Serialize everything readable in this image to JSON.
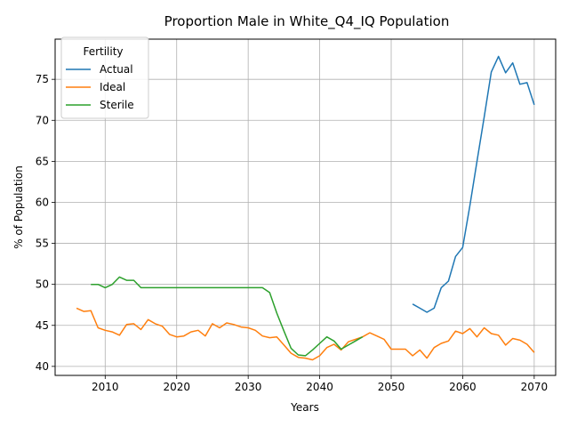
{
  "chart_data": {
    "type": "line",
    "title": "Proportion Male in White_Q4_IQ Population",
    "xlabel": "Years",
    "ylabel": "% of Population",
    "xlim": [
      2003,
      2073
    ],
    "ylim": [
      38.9,
      79.9
    ],
    "xticks": [
      2010,
      2020,
      2030,
      2040,
      2050,
      2060,
      2070
    ],
    "yticks": [
      40,
      45,
      50,
      55,
      60,
      65,
      70,
      75
    ],
    "grid": true,
    "legend": {
      "title": "Fertility",
      "placement": "top-left"
    },
    "series": [
      {
        "name": "Actual",
        "color": "#1f77b4",
        "x": [
          2053,
          2054,
          2055,
          2056,
          2057,
          2058,
          2059,
          2060,
          2061,
          2062,
          2063,
          2064,
          2065,
          2066,
          2067,
          2068,
          2069,
          2070
        ],
        "y": [
          47.6,
          47.1,
          46.6,
          47.1,
          49.6,
          50.4,
          53.4,
          54.5,
          59.6,
          65.0,
          70.4,
          75.9,
          77.8,
          75.8,
          77.0,
          74.4,
          74.6,
          71.9
        ]
      },
      {
        "name": "Ideal",
        "color": "#ff7f0e",
        "x": [
          2006,
          2007,
          2008,
          2009,
          2010,
          2011,
          2012,
          2013,
          2014,
          2015,
          2016,
          2017,
          2018,
          2019,
          2020,
          2021,
          2022,
          2023,
          2024,
          2025,
          2026,
          2027,
          2028,
          2029,
          2030,
          2031,
          2032,
          2033,
          2034,
          2035,
          2036,
          2037,
          2038,
          2039,
          2040,
          2041,
          2042,
          2043,
          2044,
          2045,
          2046,
          2047,
          2048,
          2049,
          2050,
          2051,
          2052,
          2053,
          2054,
          2055,
          2056,
          2057,
          2058,
          2059,
          2060,
          2061,
          2062,
          2063,
          2064,
          2065,
          2066,
          2067,
          2068,
          2069,
          2070
        ],
        "y": [
          47.1,
          46.7,
          46.8,
          44.7,
          44.4,
          44.2,
          43.8,
          45.1,
          45.2,
          44.5,
          45.7,
          45.2,
          44.9,
          43.9,
          43.6,
          43.7,
          44.2,
          44.4,
          43.7,
          45.2,
          44.7,
          45.3,
          45.1,
          44.8,
          44.7,
          44.4,
          43.7,
          43.5,
          43.6,
          42.6,
          41.6,
          41.1,
          41.0,
          40.8,
          41.3,
          42.3,
          42.7,
          42.0,
          43.0,
          43.3,
          43.6,
          44.1,
          43.7,
          43.3,
          42.1,
          42.1,
          42.1,
          41.3,
          42.0,
          41.0,
          42.3,
          42.8,
          43.1,
          44.3,
          44.0,
          44.6,
          43.6,
          44.7,
          44.0,
          43.8,
          42.6,
          43.4,
          43.2,
          42.7,
          41.7
        ]
      },
      {
        "name": "Sterile",
        "color": "#2ca02c",
        "x": [
          2008,
          2009,
          2010,
          2011,
          2012,
          2013,
          2014,
          2015,
          2016,
          2017,
          2018,
          2019,
          2020,
          2021,
          2022,
          2023,
          2024,
          2025,
          2026,
          2027,
          2028,
          2029,
          2030,
          2031,
          2032,
          2033,
          2034,
          2035,
          2036,
          2037,
          2038,
          2039,
          2040,
          2041,
          2042,
          2043,
          2044,
          2045,
          2046
        ],
        "y": [
          50.0,
          50.0,
          49.6,
          50.0,
          50.9,
          50.5,
          50.5,
          49.6,
          49.6,
          49.6,
          49.6,
          49.6,
          49.6,
          49.6,
          49.6,
          49.6,
          49.6,
          49.6,
          49.6,
          49.6,
          49.6,
          49.6,
          49.6,
          49.6,
          49.6,
          49.0,
          46.5,
          44.3,
          42.2,
          41.4,
          41.3,
          42.0,
          42.8,
          43.6,
          43.1,
          42.1,
          42.6,
          43.1,
          43.6
        ]
      }
    ]
  }
}
